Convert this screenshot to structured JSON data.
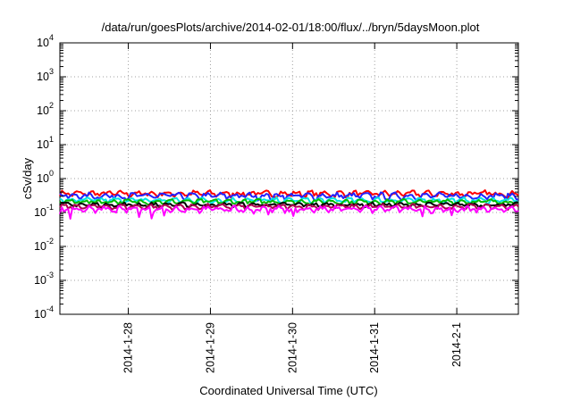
{
  "chart_data": {
    "type": "line",
    "title": "/data/run/goesPlots/archive/2014-02-01/18:00/flux/../bryn/5daysMoon.plot",
    "xlabel": "Coordinated Universal Time (UTC)",
    "ylabel": "cSv/day",
    "yscale": "log",
    "ylim": [
      0.0001,
      10000
    ],
    "xlim": [
      "2014-01-27 04:00",
      "2014-02-01 18:00"
    ],
    "grid": true,
    "y_ticks": [
      {
        "base": "10",
        "exp": "4",
        "value": 10000
      },
      {
        "base": "10",
        "exp": "3",
        "value": 1000
      },
      {
        "base": "10",
        "exp": "2",
        "value": 100
      },
      {
        "base": "10",
        "exp": "1",
        "value": 10
      },
      {
        "base": "10",
        "exp": "0",
        "value": 1
      },
      {
        "base": "10",
        "exp": "-1",
        "value": 0.1
      },
      {
        "base": "10",
        "exp": "-2",
        "value": 0.01
      },
      {
        "base": "10",
        "exp": "-3",
        "value": 0.001
      },
      {
        "base": "10",
        "exp": "-4",
        "value": 0.0001
      }
    ],
    "x_ticks": [
      "2014-1-28",
      "2014-1-29",
      "2014-1-30",
      "2014-1-31",
      "2014-2-1"
    ],
    "series": [
      {
        "color": "#ff0000",
        "base": 0.36,
        "amp": 0.09,
        "dips": false
      },
      {
        "color": "#2222ff",
        "base": 0.31,
        "amp": 0.08,
        "dips": false
      },
      {
        "color": "#00e5e5",
        "base": 0.23,
        "amp": 0.05,
        "dips": false
      },
      {
        "color": "#00bb00",
        "base": 0.21,
        "amp": 0.04,
        "dips": false
      },
      {
        "color": "#000000",
        "base": 0.17,
        "amp": 0.03,
        "dips": false
      },
      {
        "color": "#b00050",
        "base": 0.15,
        "amp": 0.03,
        "dips": false
      },
      {
        "color": "#ff00ff",
        "base": 0.125,
        "amp": 0.03,
        "dips": true
      }
    ]
  }
}
